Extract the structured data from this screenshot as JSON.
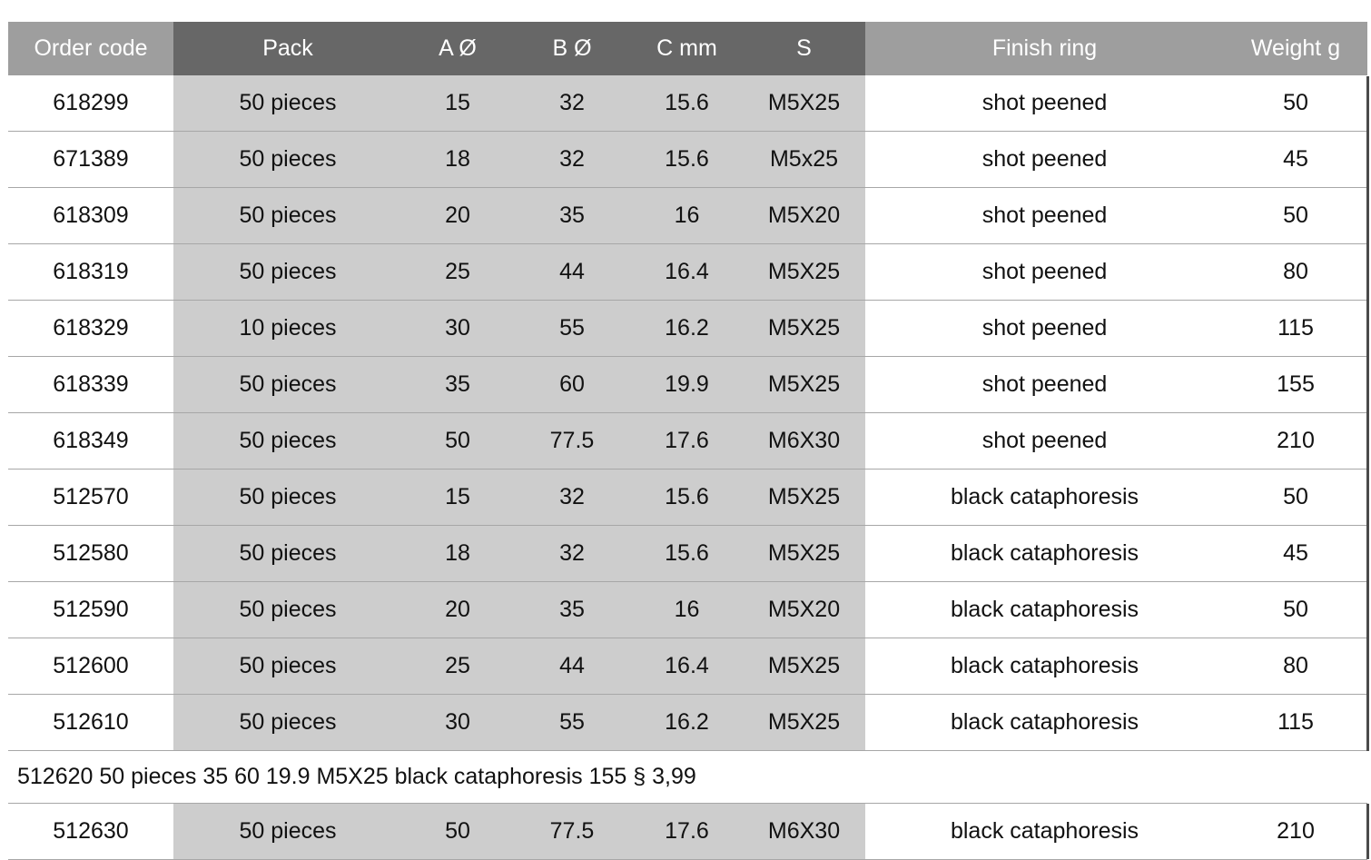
{
  "table": {
    "headers": [
      "Order code",
      "Pack",
      "A Ø",
      "B Ø",
      "C mm",
      "S",
      "Finish ring",
      "Weight g"
    ],
    "rows": [
      [
        "618299",
        "50 pieces",
        "15",
        "32",
        "15.6",
        "M5X25",
        "shot peened",
        "50"
      ],
      [
        "671389",
        "50 pieces",
        "18",
        "32",
        "15.6",
        "M5x25",
        "shot peened",
        "45"
      ],
      [
        "618309",
        "50 pieces",
        "20",
        "35",
        "16",
        "M5X20",
        "shot peened",
        "50"
      ],
      [
        "618319",
        "50 pieces",
        "25",
        "44",
        "16.4",
        "M5X25",
        "shot peened",
        "80"
      ],
      [
        "618329",
        "10 pieces",
        "30",
        "55",
        "16.2",
        "M5X25",
        "shot peened",
        "115"
      ],
      [
        "618339",
        "50 pieces",
        "35",
        "60",
        "19.9",
        "M5X25",
        "shot peened",
        "155"
      ],
      [
        "618349",
        "50 pieces",
        "50",
        "77.5",
        "17.6",
        "M6X30",
        "shot peened",
        "210"
      ],
      [
        "512570",
        "50 pieces",
        "15",
        "32",
        "15.6",
        "M5X25",
        "black cataphoresis",
        "50"
      ],
      [
        "512580",
        "50 pieces",
        "18",
        "32",
        "15.6",
        "M5X25",
        "black cataphoresis",
        "45"
      ],
      [
        "512590",
        "50 pieces",
        "20",
        "35",
        "16",
        "M5X20",
        "black cataphoresis",
        "50"
      ],
      [
        "512600",
        "50 pieces",
        "25",
        "44",
        "16.4",
        "M5X25",
        "black cataphoresis",
        "80"
      ],
      [
        "512610",
        "50 pieces",
        "30",
        "55",
        "16.2",
        "M5X25",
        "black cataphoresis",
        "115"
      ]
    ],
    "merged_row": "512620 50 pieces 35 60 19.9 M5X25 black cataphoresis 155 § 3,99",
    "last_row": [
      "512630",
      "50 pieces",
      "50",
      "77.5",
      "17.6",
      "M6X30",
      "black cataphoresis",
      "210"
    ]
  },
  "colors": {
    "header_light": "#9e9e9e",
    "header_dark": "#676767",
    "column_shade": "#cdcdcd",
    "row_divider": "#a7a7a7"
  }
}
